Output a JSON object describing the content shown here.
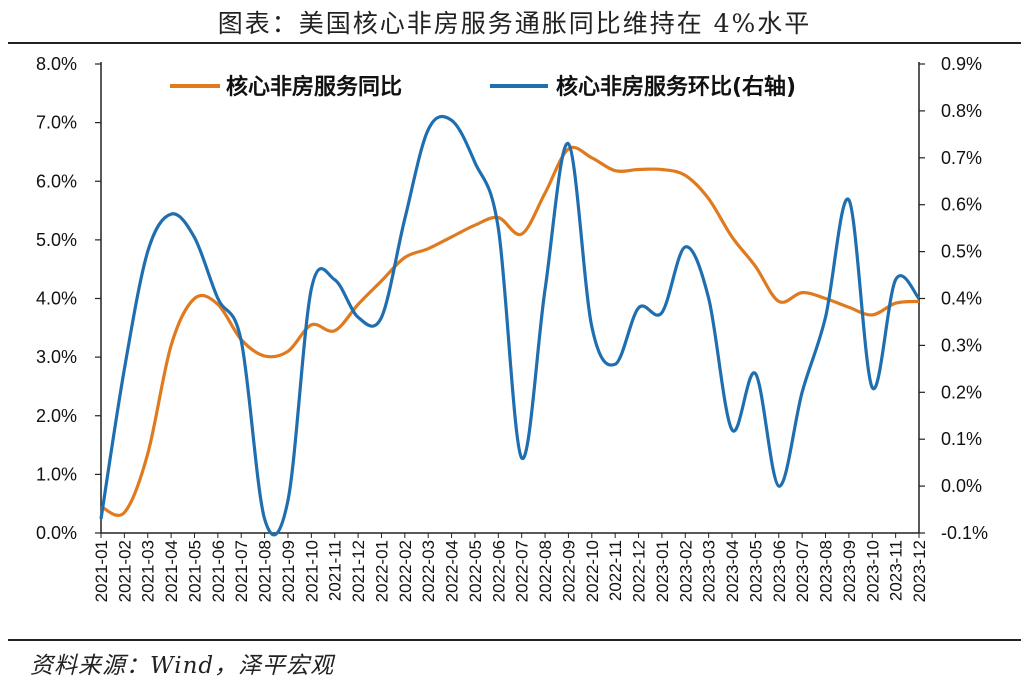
{
  "title": "图表：美国核心非房服务通胀同比维持在 4%水平",
  "source": "资料来源：Wind，泽平宏观",
  "colors": {
    "yoy": "#E07A1F",
    "mom": "#1F6FB0",
    "axis": "#222222"
  },
  "chart_data": {
    "type": "line",
    "x": [
      "2021-01",
      "2021-02",
      "2021-03",
      "2021-04",
      "2021-05",
      "2021-06",
      "2021-07",
      "2021-08",
      "2021-09",
      "2021-10",
      "2021-11",
      "2021-12",
      "2022-01",
      "2022-02",
      "2022-03",
      "2022-04",
      "2022-05",
      "2022-06",
      "2022-07",
      "2022-08",
      "2022-09",
      "2022-10",
      "2022-11",
      "2022-12",
      "2023-01",
      "2023-02",
      "2023-03",
      "2023-04",
      "2023-05",
      "2023-06",
      "2023-07",
      "2023-08",
      "2023-09",
      "2023-10",
      "2023-11",
      "2023-12"
    ],
    "series": [
      {
        "name": "核心非房服务同比",
        "axis": "left",
        "values": [
          0.45,
          0.35,
          1.35,
          3.2,
          4.0,
          3.9,
          3.3,
          3.02,
          3.1,
          3.55,
          3.45,
          3.9,
          4.3,
          4.7,
          4.85,
          5.05,
          5.25,
          5.38,
          5.1,
          5.8,
          6.55,
          6.4,
          6.18,
          6.2,
          6.2,
          6.1,
          5.7,
          5.05,
          4.55,
          3.95,
          4.1,
          4.0,
          3.85,
          3.72,
          3.92,
          3.95
        ]
      },
      {
        "name": "核心非房服务环比(右轴)",
        "axis": "right",
        "values": [
          -0.07,
          0.25,
          0.5,
          0.58,
          0.53,
          0.4,
          0.31,
          -0.07,
          -0.03,
          0.42,
          0.44,
          0.36,
          0.36,
          0.57,
          0.76,
          0.78,
          0.69,
          0.55,
          0.06,
          0.42,
          0.73,
          0.34,
          0.26,
          0.38,
          0.37,
          0.51,
          0.4,
          0.12,
          0.24,
          0.0,
          0.2,
          0.36,
          0.61,
          0.21,
          0.44,
          0.4
        ]
      }
    ],
    "yleft": {
      "ticks": [
        "8.0%",
        "7.0%",
        "6.0%",
        "5.0%",
        "4.0%",
        "3.0%",
        "2.0%",
        "1.0%",
        "0.0%"
      ],
      "ylim": [
        0,
        8
      ]
    },
    "yright": {
      "ticks": [
        "0.9%",
        "0.8%",
        "0.7%",
        "0.6%",
        "0.5%",
        "0.4%",
        "0.3%",
        "0.2%",
        "0.1%",
        "0.0%",
        "-0.1%"
      ],
      "ylim": [
        -0.1,
        0.9
      ]
    },
    "legend": "top",
    "grid": false
  }
}
